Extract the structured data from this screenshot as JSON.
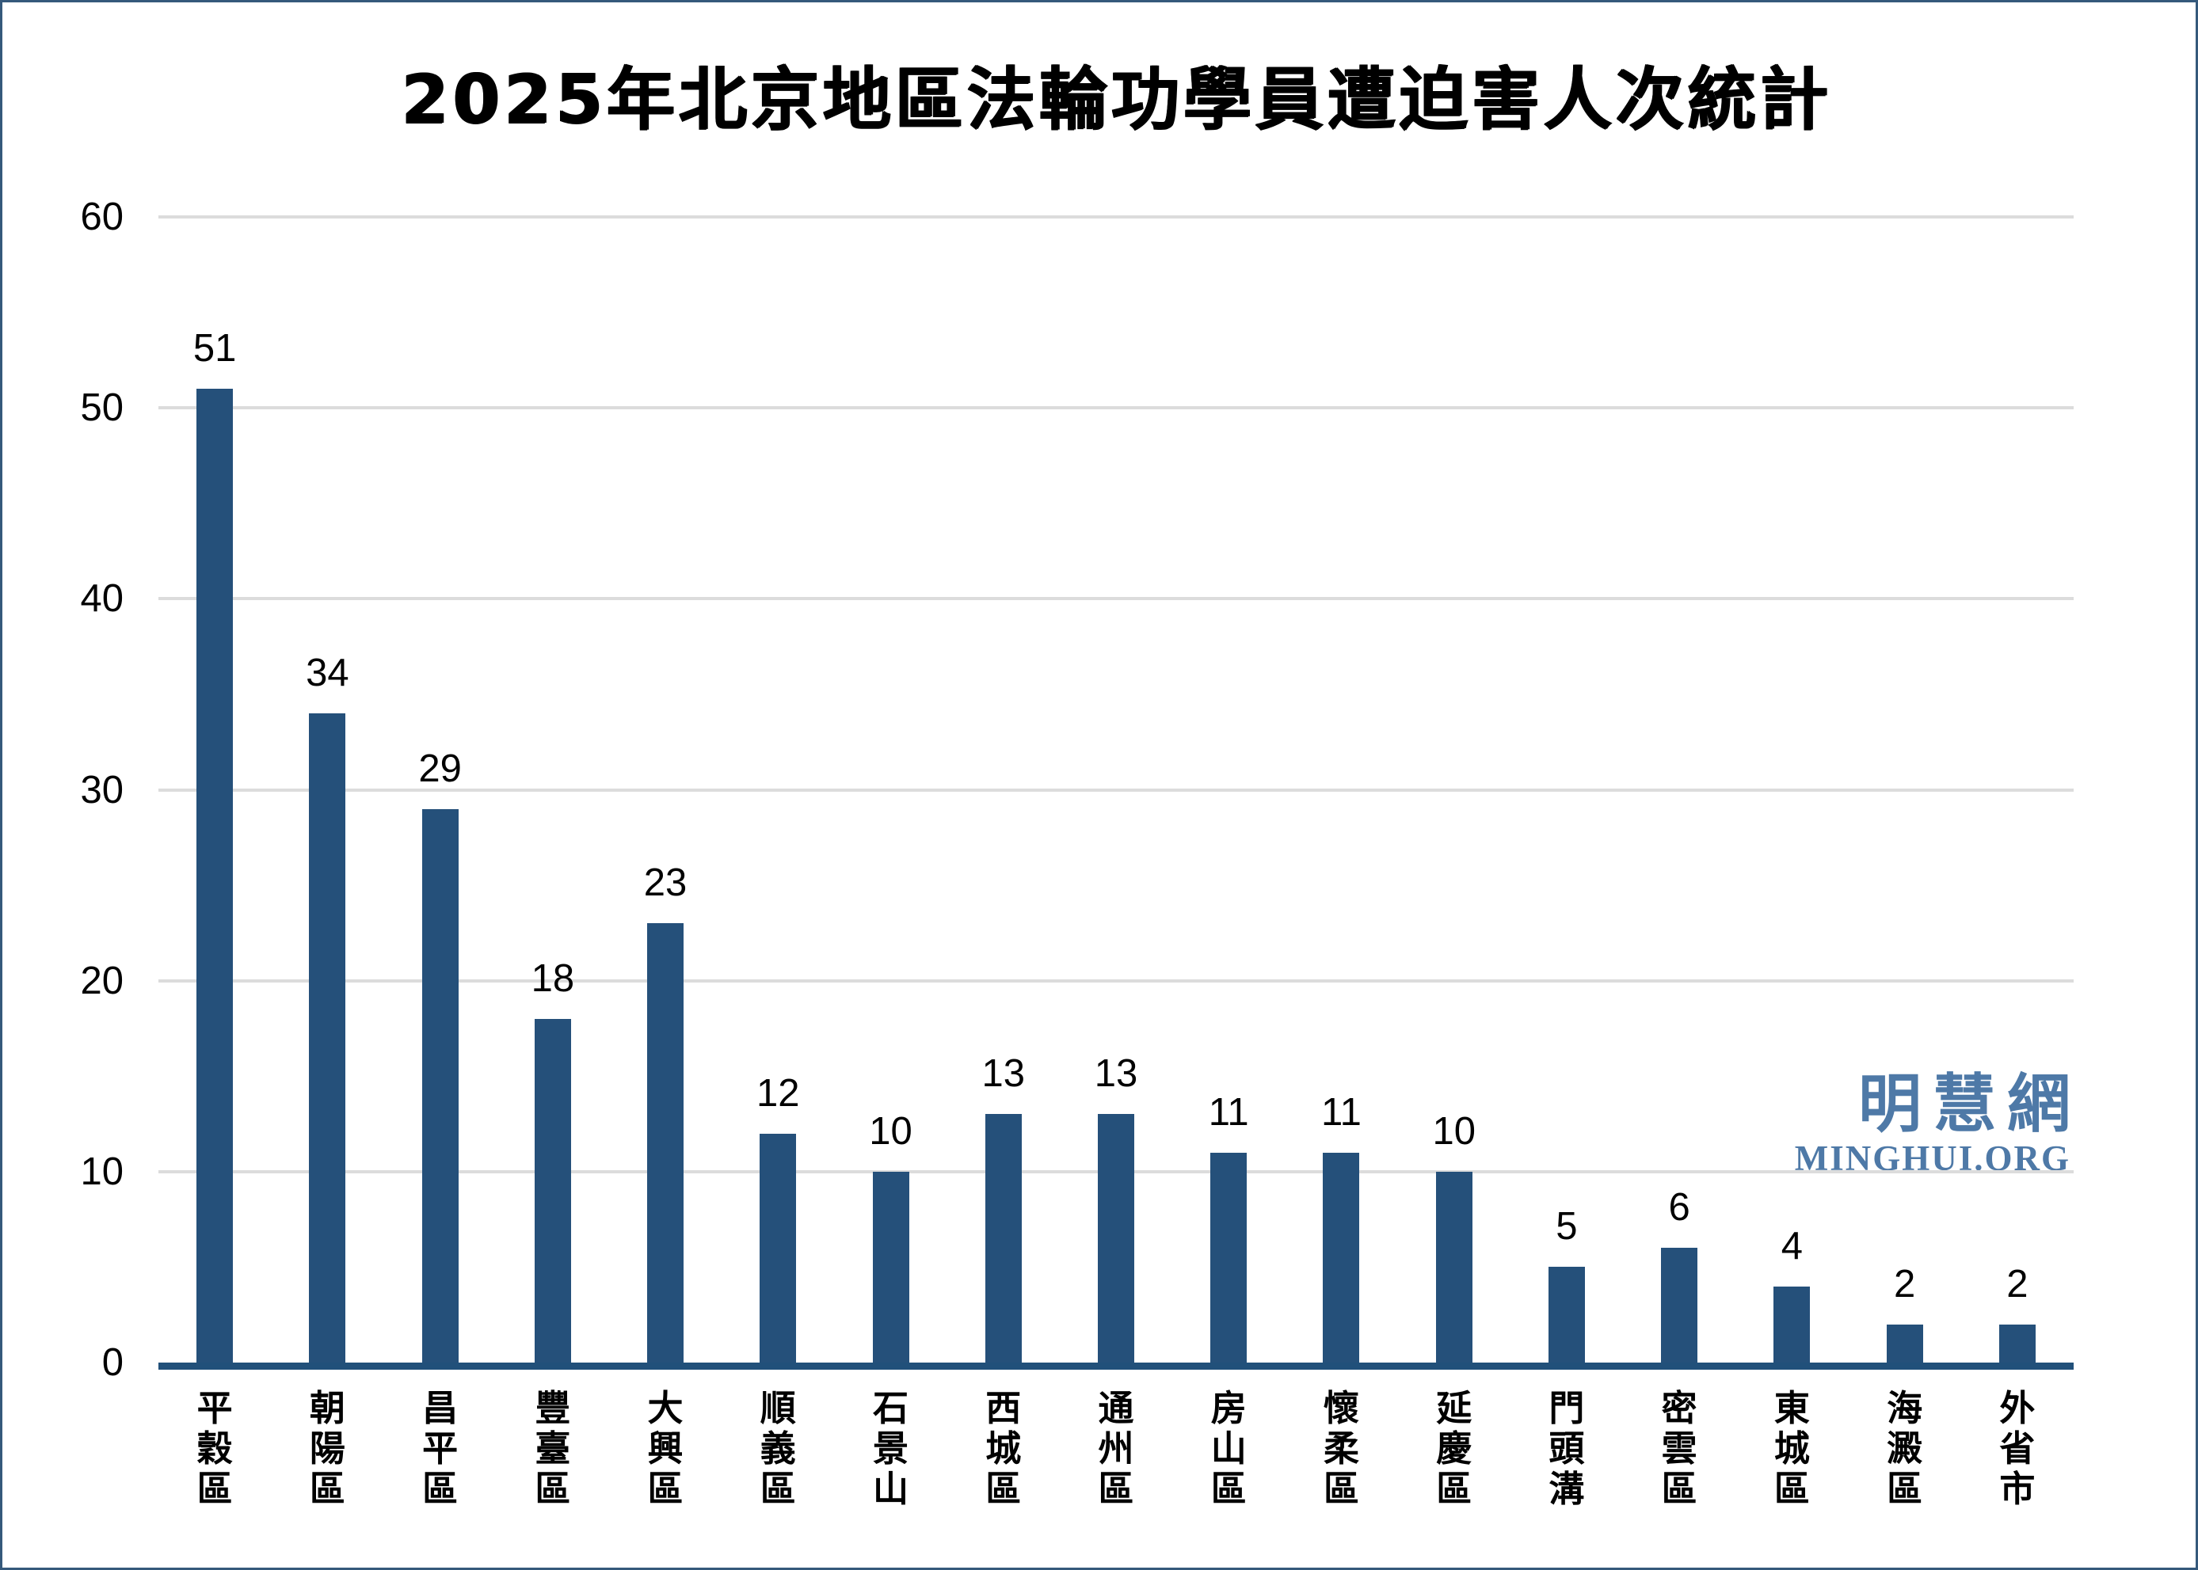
{
  "chart_data": {
    "type": "bar",
    "title": "2025年北京地區法輪功學員遭迫害人次統計",
    "categories": [
      "平穀區",
      "朝陽區",
      "昌平區",
      "豐臺區",
      "大興區",
      "順義區",
      "石景山",
      "西城區",
      "通州區",
      "房山區",
      "懷柔區",
      "延慶區",
      "門頭溝",
      "密雲區",
      "東城區",
      "海澱區",
      "外省市"
    ],
    "values": [
      51,
      34,
      29,
      18,
      23,
      12,
      10,
      13,
      13,
      11,
      11,
      10,
      5,
      6,
      4,
      2,
      2
    ],
    "xlabel": "",
    "ylabel": "",
    "ylim": [
      0,
      60
    ],
    "yticks": [
      0,
      10,
      20,
      30,
      40,
      50,
      60
    ],
    "grid": "horizontal",
    "legend": "none",
    "value_labels_shown": true,
    "colors": {
      "bar": "#25507A",
      "axis_line": "#21507A",
      "gridline": "#DCDCDC",
      "text": "#000000",
      "frame_border": "#35597B"
    }
  },
  "watermark": {
    "cjk": "明慧網",
    "latin": "MINGHUI.ORG",
    "color": "#4E79A7"
  }
}
